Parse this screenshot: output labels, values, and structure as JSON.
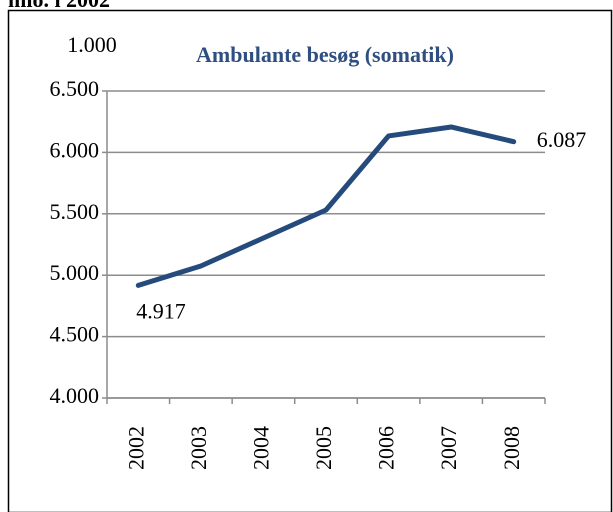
{
  "caption": "mio. i 2002",
  "chart_data": {
    "type": "line",
    "title": "Ambulante besøg (somatik)",
    "y_unit_label": "1.000",
    "categories": [
      "2002",
      "2003",
      "2004",
      "2005",
      "2006",
      "2007",
      "2008"
    ],
    "series": [
      {
        "name": "Ambulante besøg (somatik)",
        "color": "#254a7c",
        "values": [
          4917,
          5075,
          5303,
          5531,
          6134,
          6207,
          6087
        ],
        "value_labels": [
          "4.917",
          null,
          null,
          null,
          null,
          null,
          "6.087"
        ]
      }
    ],
    "ylim": [
      4000,
      6500
    ],
    "yticks": [
      {
        "value": 4000,
        "label": "4.000"
      },
      {
        "value": 4500,
        "label": "4.500"
      },
      {
        "value": 5000,
        "label": "5.000"
      },
      {
        "value": 5500,
        "label": "5.500"
      },
      {
        "value": 6000,
        "label": "6.000"
      },
      {
        "value": 6500,
        "label": "6.500"
      }
    ],
    "grid": true,
    "legend": false
  }
}
